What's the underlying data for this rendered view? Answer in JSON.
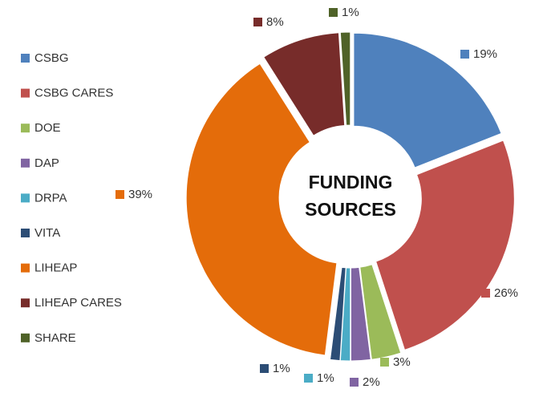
{
  "chart_data": {
    "type": "donut",
    "title": "FUNDING SOURCES",
    "categories": [
      "CSBG",
      "CSBG CARES",
      "DOE",
      "DAP",
      "DRPA",
      "VITA",
      "LIHEAP",
      "LIHEAP CARES",
      "SHARE"
    ],
    "values": [
      19,
      26,
      3,
      2,
      1,
      1,
      39,
      8,
      1
    ],
    "value_labels": [
      "19%",
      "26%",
      "3%",
      "2%",
      "1%",
      "1%",
      "39%",
      "8%",
      "1%"
    ],
    "colors": [
      "#4f81bd",
      "#c0504d",
      "#9bbb59",
      "#8064a2",
      "#4bacc6",
      "#2c4d75",
      "#e46c0a",
      "#772c2a",
      "#4f6228"
    ],
    "legend": "left"
  }
}
